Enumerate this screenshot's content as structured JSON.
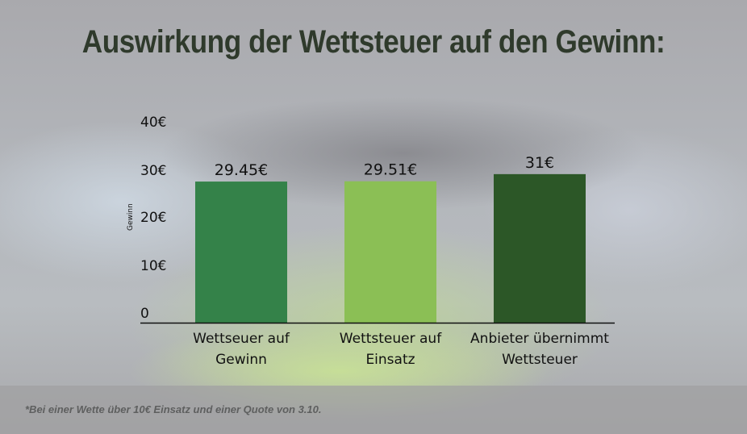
{
  "chart_data": {
    "type": "bar",
    "title": "Auswirkung der Wettsteuer auf den Gewinn:",
    "ylabel": "Gewinn",
    "xlabel": "",
    "ylim": [
      0,
      40
    ],
    "yticks": [
      "0",
      "10€",
      "20€",
      "30€",
      "40€"
    ],
    "categories": [
      [
        "Wettseuer auf",
        "Gewinn"
      ],
      [
        "Wettsteuer auf",
        "Einsatz"
      ],
      [
        "Anbieter übernimmt",
        "Wettsteuer"
      ]
    ],
    "values": [
      29.45,
      29.51,
      31
    ],
    "data_labels": [
      "29.45€",
      "29.51€",
      "31€"
    ],
    "colors": [
      "#348249",
      "#8bbf55",
      "#2c5727"
    ],
    "grid": false
  },
  "footnote": "*Bei einer Wette über 10€ Einsatz und einer Quote von 3.10."
}
